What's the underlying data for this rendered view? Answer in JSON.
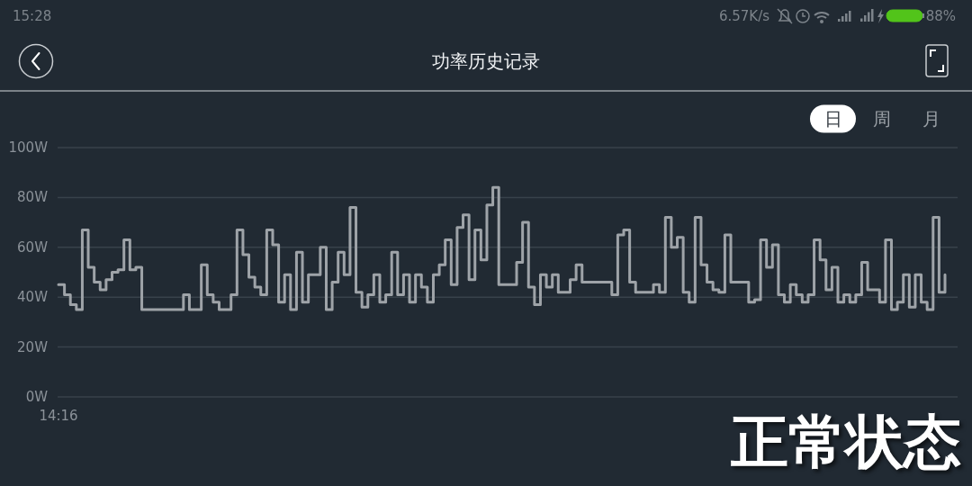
{
  "chart_data": {
    "type": "step",
    "title": "功率历史记录",
    "categories": [
      "14:16",
      null,
      null,
      null,
      null,
      null,
      null,
      null,
      null,
      null,
      null,
      null,
      null,
      null,
      null,
      null,
      null,
      null,
      null,
      null,
      null,
      null,
      null,
      null,
      null,
      null,
      null,
      null,
      null,
      null,
      null,
      null,
      null,
      null,
      null,
      null,
      null,
      null,
      null,
      null,
      null,
      null,
      null,
      null,
      null,
      null,
      null,
      null,
      null,
      null,
      null,
      null,
      null,
      null,
      null,
      null,
      null,
      null,
      null,
      null,
      null,
      null,
      null,
      null,
      null,
      null,
      null,
      null,
      null,
      null,
      null,
      null,
      null,
      null,
      null,
      null,
      null,
      null,
      null,
      null,
      null,
      null,
      null,
      null,
      null,
      null,
      null,
      null,
      null,
      null,
      null,
      null,
      null,
      null,
      null,
      null,
      null,
      null,
      null,
      null,
      null,
      null,
      null,
      null,
      null,
      null,
      null,
      null,
      null,
      null,
      null,
      null,
      null,
      null,
      null,
      null,
      null,
      null,
      null,
      null,
      null,
      null,
      null,
      null,
      null,
      null,
      null,
      null,
      null,
      null,
      null,
      null,
      null,
      null,
      null,
      null,
      null,
      null,
      null,
      null,
      null,
      null,
      null,
      null,
      null,
      null,
      null,
      null,
      null,
      null
    ],
    "series": [
      {
        "color": "#9ea3a8",
        "values": [
          45,
          41,
          37,
          35,
          67,
          52,
          46,
          43,
          47,
          50,
          51,
          63,
          51,
          52,
          35,
          35,
          35,
          35,
          35,
          35,
          35,
          41,
          35,
          35,
          53,
          41,
          38,
          35,
          35,
          41,
          67,
          57,
          48,
          44,
          41,
          67,
          61,
          38,
          49,
          35,
          58,
          38,
          49,
          49,
          60,
          35,
          46,
          58,
          49,
          76,
          42,
          36,
          41,
          49,
          38,
          41,
          58,
          41,
          49,
          38,
          49,
          44,
          38,
          49,
          53,
          63,
          45,
          68,
          73,
          47,
          67,
          55,
          77,
          84,
          45,
          45,
          45,
          54,
          70,
          44,
          37,
          49,
          44,
          49,
          42,
          42,
          47,
          53,
          46,
          46,
          46,
          46,
          46,
          41,
          65,
          67,
          46,
          42,
          42,
          42,
          45,
          42,
          72,
          60,
          64,
          42,
          38,
          72,
          53,
          46,
          43,
          42,
          65,
          46,
          46,
          46,
          38,
          39,
          63,
          52,
          61,
          41,
          38,
          45,
          41,
          38,
          41,
          63,
          55,
          43,
          52,
          38,
          41,
          38,
          41,
          54,
          43,
          43,
          38,
          63,
          35,
          38,
          49,
          36,
          49,
          38,
          35,
          72,
          42,
          49
        ]
      }
    ],
    "ylim": [
      0,
      100
    ],
    "yticks": [
      {
        "value": 0,
        "label": "0W"
      },
      {
        "value": 20,
        "label": "20W"
      },
      {
        "value": 40,
        "label": "40W"
      },
      {
        "value": 60,
        "label": "60W"
      },
      {
        "value": 80,
        "label": "80W"
      },
      {
        "value": 100,
        "label": "100W"
      }
    ],
    "grid": "y",
    "annotations": [
      "15:28",
      "6.57K/s",
      "88%",
      "日",
      "周",
      "月",
      "正常状态"
    ]
  }
}
